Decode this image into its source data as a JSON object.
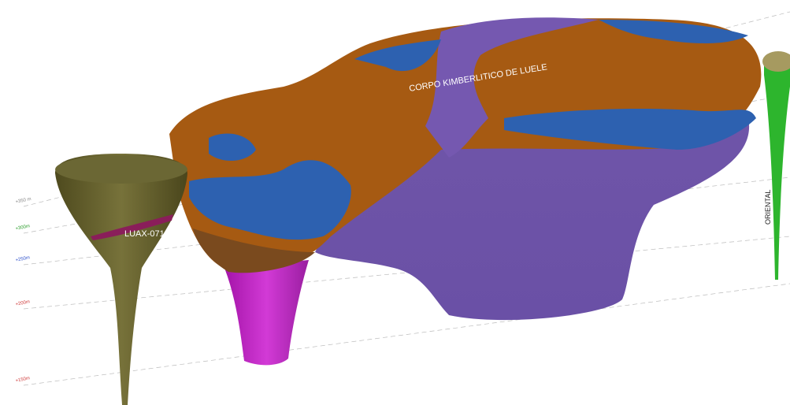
{
  "labels": {
    "main_body": "CORPO KIMBERLITICO DE LUELE",
    "drillhole": "LUAX-071",
    "oriental": "ORIENTAL"
  },
  "elevations": [
    {
      "label": "+350 m",
      "color": "#888888"
    },
    {
      "label": "+300m",
      "color": "#2e9e2e"
    },
    {
      "label": "+250m",
      "color": "#3355cc"
    },
    {
      "label": "+200m",
      "color": "#d04040"
    },
    {
      "label": "+150m",
      "color": "#d04040"
    }
  ]
}
